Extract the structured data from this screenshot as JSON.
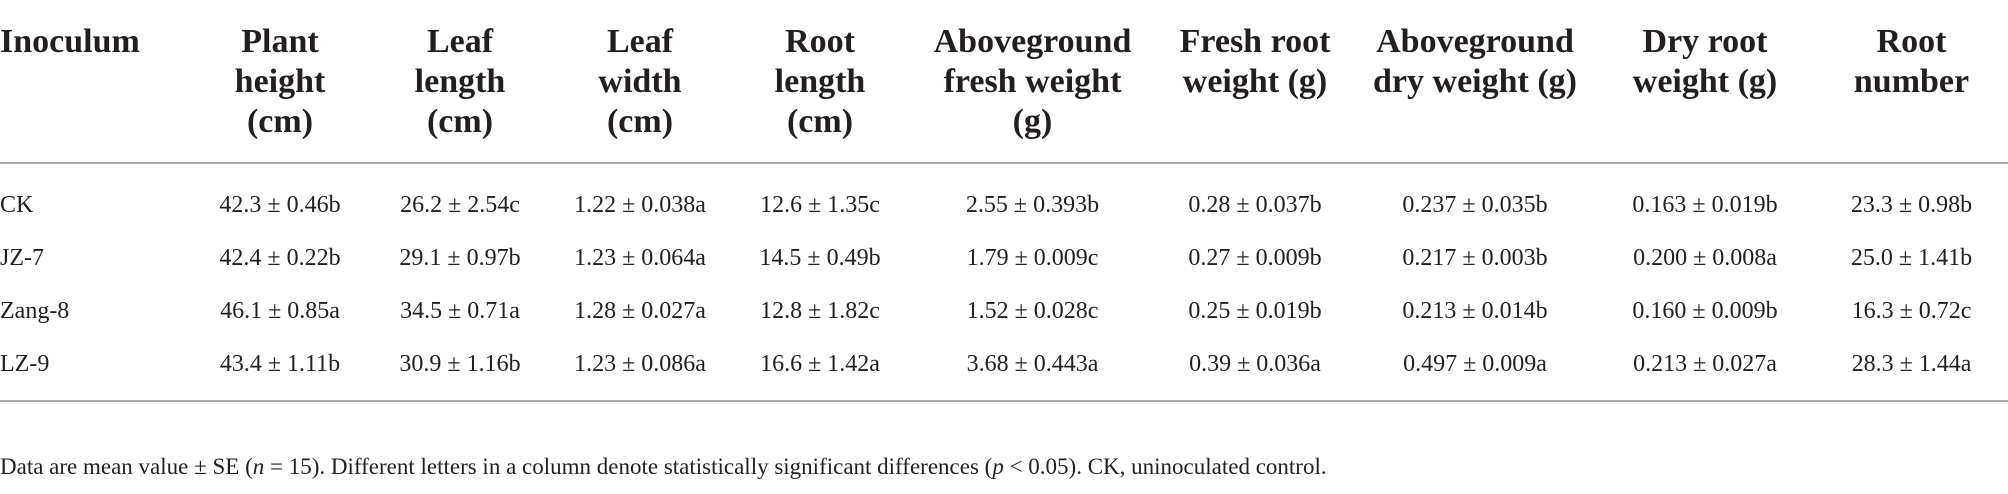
{
  "table": {
    "headers": [
      [
        "Inoculum"
      ],
      [
        "Plant",
        "height",
        "(cm)"
      ],
      [
        "Leaf",
        "length",
        "(cm)"
      ],
      [
        "Leaf",
        "width",
        "(cm)"
      ],
      [
        "Root",
        "length",
        "(cm)"
      ],
      [
        "Aboveground",
        "fresh weight",
        "(g)"
      ],
      [
        "Fresh root",
        "weight (g)"
      ],
      [
        "Aboveground",
        "dry weight (g)"
      ],
      [
        "Dry root",
        "weight (g)"
      ],
      [
        "Root",
        "number"
      ]
    ],
    "rows": [
      [
        "CK",
        "42.3 ± 0.46b",
        "26.2 ± 2.54c",
        "1.22 ± 0.038a",
        "12.6 ± 1.35c",
        "2.55 ± 0.393b",
        "0.28 ± 0.037b",
        "0.237 ± 0.035b",
        "0.163 ± 0.019b",
        "23.3 ± 0.98b"
      ],
      [
        "JZ-7",
        "42.4 ± 0.22b",
        "29.1 ± 0.97b",
        "1.23 ± 0.064a",
        "14.5 ± 0.49b",
        "1.79 ± 0.009c",
        "0.27 ± 0.009b",
        "0.217 ± 0.003b",
        "0.200 ± 0.008a",
        "25.0 ± 1.41b"
      ],
      [
        "Zang-8",
        "46.1 ± 0.85a",
        "34.5 ± 0.71a",
        "1.28 ± 0.027a",
        "12.8 ± 1.82c",
        "1.52 ± 0.028c",
        "0.25 ± 0.019b",
        "0.213 ± 0.014b",
        "0.160 ± 0.009b",
        "16.3 ± 0.72c"
      ],
      [
        "LZ-9",
        "43.4 ± 1.11b",
        "30.9 ± 1.16b",
        "1.23 ± 0.086a",
        "16.6 ± 1.42a",
        "3.68 ± 0.443a",
        "0.39 ± 0.036a",
        "0.497 ± 0.009a",
        "0.213 ± 0.027a",
        "28.3 ± 1.44a"
      ]
    ]
  },
  "footnote": {
    "part1": "Data are mean value ± SE (",
    "n_symbol": "n",
    "part2": " = 15). Different letters in a column denote statistically significant differences (",
    "p_symbol": "p",
    "part3": " < 0.05). CK, uninoculated control."
  }
}
